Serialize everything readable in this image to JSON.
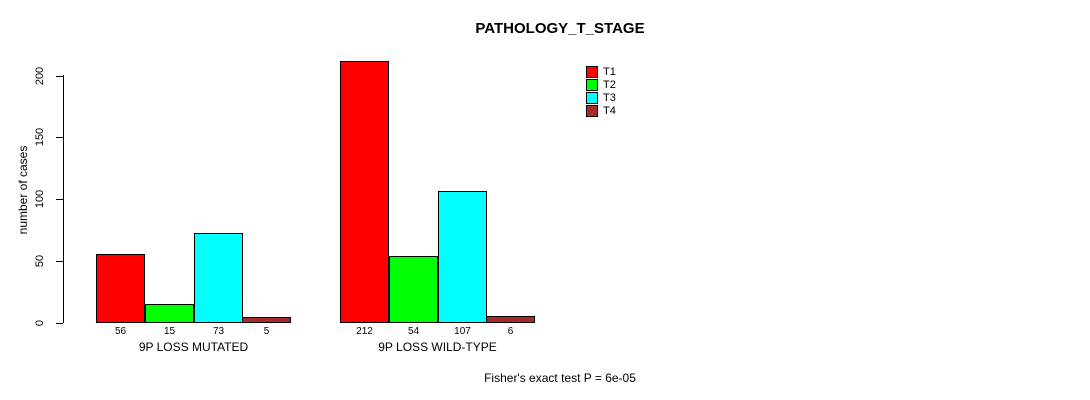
{
  "chart_data": {
    "type": "bar",
    "title": "PATHOLOGY_T_STAGE",
    "xlabel": "",
    "ylabel": "number of cases",
    "categories": [
      "9P LOSS MUTATED",
      "9P LOSS WILD-TYPE"
    ],
    "series": [
      {
        "name": "T1",
        "color": "#FF0000",
        "values": [
          56,
          212
        ]
      },
      {
        "name": "T2",
        "color": "#00FF00",
        "values": [
          15,
          54
        ]
      },
      {
        "name": "T3",
        "color": "#00FFFF",
        "values": [
          73,
          107
        ]
      },
      {
        "name": "T4",
        "color": "#A52A2A",
        "values": [
          5,
          6
        ]
      }
    ],
    "ylim": [
      0,
      200
    ],
    "yticks": [
      0,
      50,
      100,
      150,
      200
    ],
    "bar_value_labels": true,
    "grid": false,
    "legend_position": "top-right",
    "legend_entries": [
      "T1",
      "T2",
      "T3",
      "T4"
    ],
    "annotation": "Fisher's exact test P = 6e-05"
  }
}
